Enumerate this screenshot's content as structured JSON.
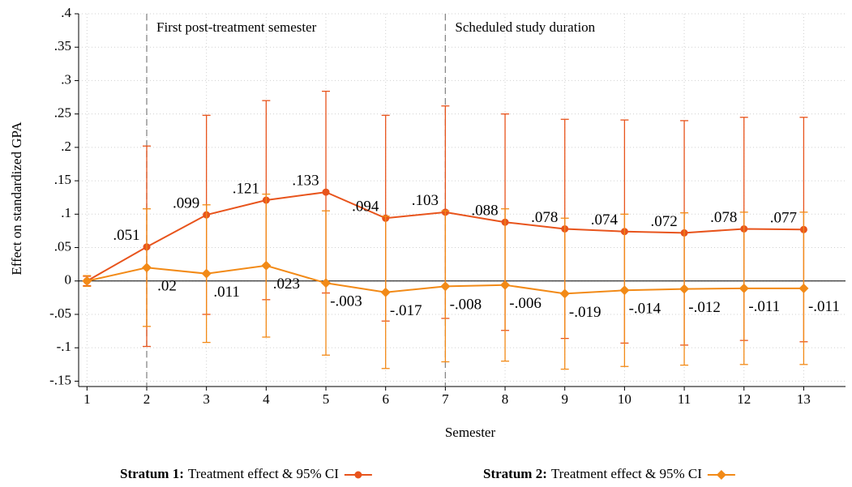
{
  "chart_data": {
    "type": "line",
    "y_label": "Effect on standardized GPA",
    "x_label": "Semester",
    "x": [
      1,
      2,
      3,
      4,
      5,
      6,
      7,
      8,
      9,
      10,
      11,
      12,
      13
    ],
    "xlim": [
      0.86,
      13.7
    ],
    "xticks": [
      1,
      2,
      3,
      4,
      5,
      6,
      7,
      8,
      9,
      10,
      11,
      12,
      13
    ],
    "ylim": [
      -0.158,
      0.4
    ],
    "yticks": [
      {
        "value": 0.4,
        "label": ".4"
      },
      {
        "value": 0.35,
        "label": ".35"
      },
      {
        "value": 0.3,
        "label": ".3"
      },
      {
        "value": 0.25,
        "label": ".25"
      },
      {
        "value": 0.2,
        "label": ".2"
      },
      {
        "value": 0.15,
        "label": ".15"
      },
      {
        "value": 0.1,
        "label": ".1"
      },
      {
        "value": 0.05,
        "label": ".05"
      },
      0,
      {
        "value": -0.05,
        "label": "-.05"
      },
      {
        "value": -0.1,
        "label": "-.1"
      },
      {
        "value": -0.15,
        "label": "-.15"
      }
    ],
    "grid": true,
    "annotations": [
      {
        "x": 2,
        "text": "First post-treatment semester"
      },
      {
        "x": 7,
        "text": "Scheduled study duration"
      }
    ],
    "series": [
      {
        "name": "Stratum 1:",
        "legend_text": "Treatment effect & 95% CI",
        "color": "#e8541c",
        "marker": "circle",
        "label_side": "above",
        "values": [
          0,
          0.051,
          0.099,
          0.121,
          0.133,
          0.094,
          0.103,
          0.088,
          0.078,
          0.074,
          0.072,
          0.078,
          0.077
        ],
        "value_labels": [
          null,
          ".051",
          ".099",
          ".121",
          ".133",
          ".094",
          ".103",
          ".088",
          ".078",
          ".074",
          ".072",
          ".078",
          ".077"
        ],
        "lower": [
          -0.007,
          -0.098,
          -0.05,
          -0.028,
          -0.018,
          -0.06,
          -0.056,
          -0.074,
          -0.086,
          -0.093,
          -0.096,
          -0.089,
          -0.091
        ],
        "upper": [
          0.007,
          0.202,
          0.248,
          0.27,
          0.284,
          0.248,
          0.262,
          0.25,
          0.242,
          0.241,
          0.24,
          0.245,
          0.245
        ]
      },
      {
        "name": "Stratum 2:",
        "legend_text": "Treatment effect & 95% CI",
        "color": "#f28a17",
        "marker": "diamond",
        "label_side": "below",
        "values": [
          0,
          0.02,
          0.011,
          0.023,
          -0.003,
          -0.017,
          -0.008,
          -0.006,
          -0.019,
          -0.014,
          -0.012,
          -0.011,
          -0.011
        ],
        "value_labels": [
          null,
          ".02",
          ".011",
          ".023",
          "-.003",
          "-.017",
          "-.008",
          "-.006",
          "-.019",
          "-.014",
          "-.012",
          "-.011",
          "-.011"
        ],
        "lower": [
          -0.008,
          -0.068,
          -0.092,
          -0.084,
          -0.111,
          -0.131,
          -0.121,
          -0.12,
          -0.132,
          -0.128,
          -0.126,
          -0.125,
          -0.125
        ],
        "upper": [
          0.008,
          0.108,
          0.114,
          0.13,
          0.105,
          0.097,
          0.105,
          0.108,
          0.094,
          0.1,
          0.102,
          0.103,
          0.103
        ]
      }
    ]
  }
}
